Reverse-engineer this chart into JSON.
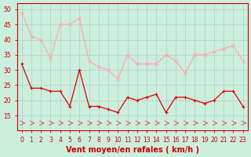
{
  "hours": [
    0,
    1,
    2,
    3,
    4,
    5,
    6,
    7,
    8,
    9,
    10,
    11,
    12,
    13,
    14,
    15,
    16,
    17,
    18,
    19,
    20,
    21,
    22,
    23
  ],
  "wind_avg": [
    32,
    24,
    24,
    23,
    23,
    18,
    30,
    18,
    18,
    17,
    16,
    21,
    20,
    21,
    22,
    16,
    21,
    21,
    20,
    19,
    20,
    23,
    23,
    18
  ],
  "wind_gust": [
    49,
    41,
    40,
    34,
    45,
    45,
    47,
    33,
    31,
    30,
    27,
    35,
    32,
    32,
    32,
    35,
    33,
    29,
    35,
    35,
    36,
    37,
    38,
    33
  ],
  "avg_color": "#dd0000",
  "gust_color": "#ffaaaa",
  "bg_color": "#cceedd",
  "grid_color": "#aacccc",
  "arrow_color": "#dd4444",
  "xlabel": "Vent moyen/en rafales ( km/h )",
  "xlabel_fontsize": 7,
  "tick_fontsize": 5.5,
  "ylim": [
    10,
    52
  ],
  "yticks": [
    15,
    20,
    25,
    30,
    35,
    40,
    45,
    50
  ]
}
